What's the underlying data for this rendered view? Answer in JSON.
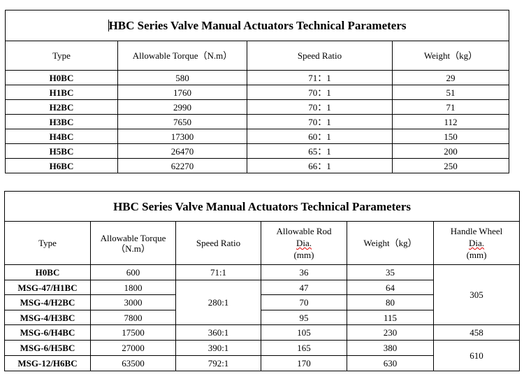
{
  "table1": {
    "title": "HBC Series Valve Manual Actuators Technical Parameters",
    "headers": [
      "Type",
      "Allowable Torque（N.m）",
      "Speed Ratio",
      "Weight（kg）"
    ],
    "rows": [
      [
        "H0BC",
        "580",
        "71：1",
        "29"
      ],
      [
        "H1BC",
        "1760",
        "70：1",
        "51"
      ],
      [
        "H2BC",
        "2990",
        "70：1",
        "71"
      ],
      [
        "H3BC",
        "7650",
        "70：1",
        "112"
      ],
      [
        "H4BC",
        "17300",
        "60：1",
        "150"
      ],
      [
        "H5BC",
        "26470",
        "65：1",
        "200"
      ],
      [
        "H6BC",
        "62270",
        "66：1",
        "250"
      ]
    ]
  },
  "table2": {
    "title": "HBC Series Valve Manual Actuators Technical Parameters",
    "headers": {
      "type": "Type",
      "torque_1": "Allowable Torque",
      "torque_2": "（N.m）",
      "speed": "Speed Ratio",
      "rod_1": "Allowable Rod",
      "rod_2": "Dia.",
      "rod_3": "(mm)",
      "weight": "Weight（kg）",
      "wheel_1": "Handle Wheel",
      "wheel_2": "Dia.",
      "wheel_3": "(mm)"
    },
    "rows": [
      {
        "type": "H0BC",
        "torque": "600",
        "speed": "71:1",
        "rod": "36",
        "weight": "35"
      },
      {
        "type": "MSG-47/H1BC",
        "torque": "1800",
        "rod": "47",
        "weight": "64"
      },
      {
        "type": "MSG-4/H2BC",
        "torque": "3000",
        "rod": "70",
        "weight": "80"
      },
      {
        "type": "MSG-4/H3BC",
        "torque": "7800",
        "rod": "95",
        "weight": "115"
      },
      {
        "type": "MSG-6/H4BC",
        "torque": "17500",
        "speed": "360:1",
        "rod": "105",
        "weight": "230"
      },
      {
        "type": "MSG-6/H5BC",
        "torque": "27000",
        "speed": "390:1",
        "rod": "165",
        "weight": "380"
      },
      {
        "type": "MSG-12/H6BC",
        "torque": "63500",
        "speed": "792:1",
        "rod": "170",
        "weight": "630"
      }
    ],
    "merged": {
      "speed_280": "280:1",
      "wheel_305": "305",
      "wheel_458": "458",
      "wheel_610": "610"
    }
  }
}
